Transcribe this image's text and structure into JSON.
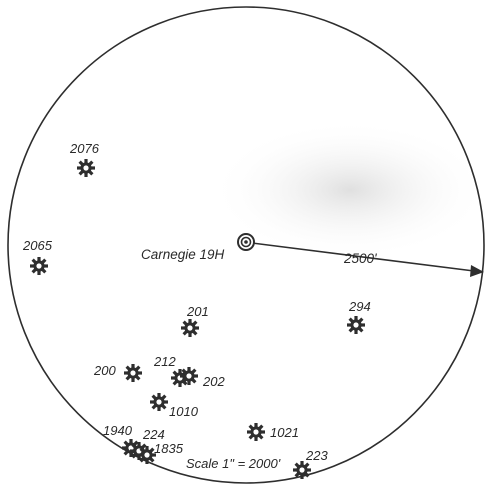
{
  "map": {
    "center": {
      "label": "Carnegie 19H"
    },
    "radius_label": "2500'",
    "scale_label": "Scale 1\" = 2000'",
    "colors": {
      "ink": "#2e2e2e",
      "paper": "#ffffff",
      "shade": "#e6e6e6"
    },
    "wells": [
      {
        "id": "w2076",
        "label": "2076"
      },
      {
        "id": "w2065",
        "label": "2065"
      },
      {
        "id": "w201",
        "label": "201"
      },
      {
        "id": "w294",
        "label": "294"
      },
      {
        "id": "w200",
        "label": "200"
      },
      {
        "id": "w212",
        "label": "212"
      },
      {
        "id": "w202",
        "label": "202"
      },
      {
        "id": "w1010",
        "label": "1010"
      },
      {
        "id": "w1940",
        "label": "1940"
      },
      {
        "id": "w224",
        "label": "224"
      },
      {
        "id": "w1835",
        "label": "1835"
      },
      {
        "id": "w1021",
        "label": "1021"
      },
      {
        "id": "w223",
        "label": "223"
      }
    ]
  }
}
